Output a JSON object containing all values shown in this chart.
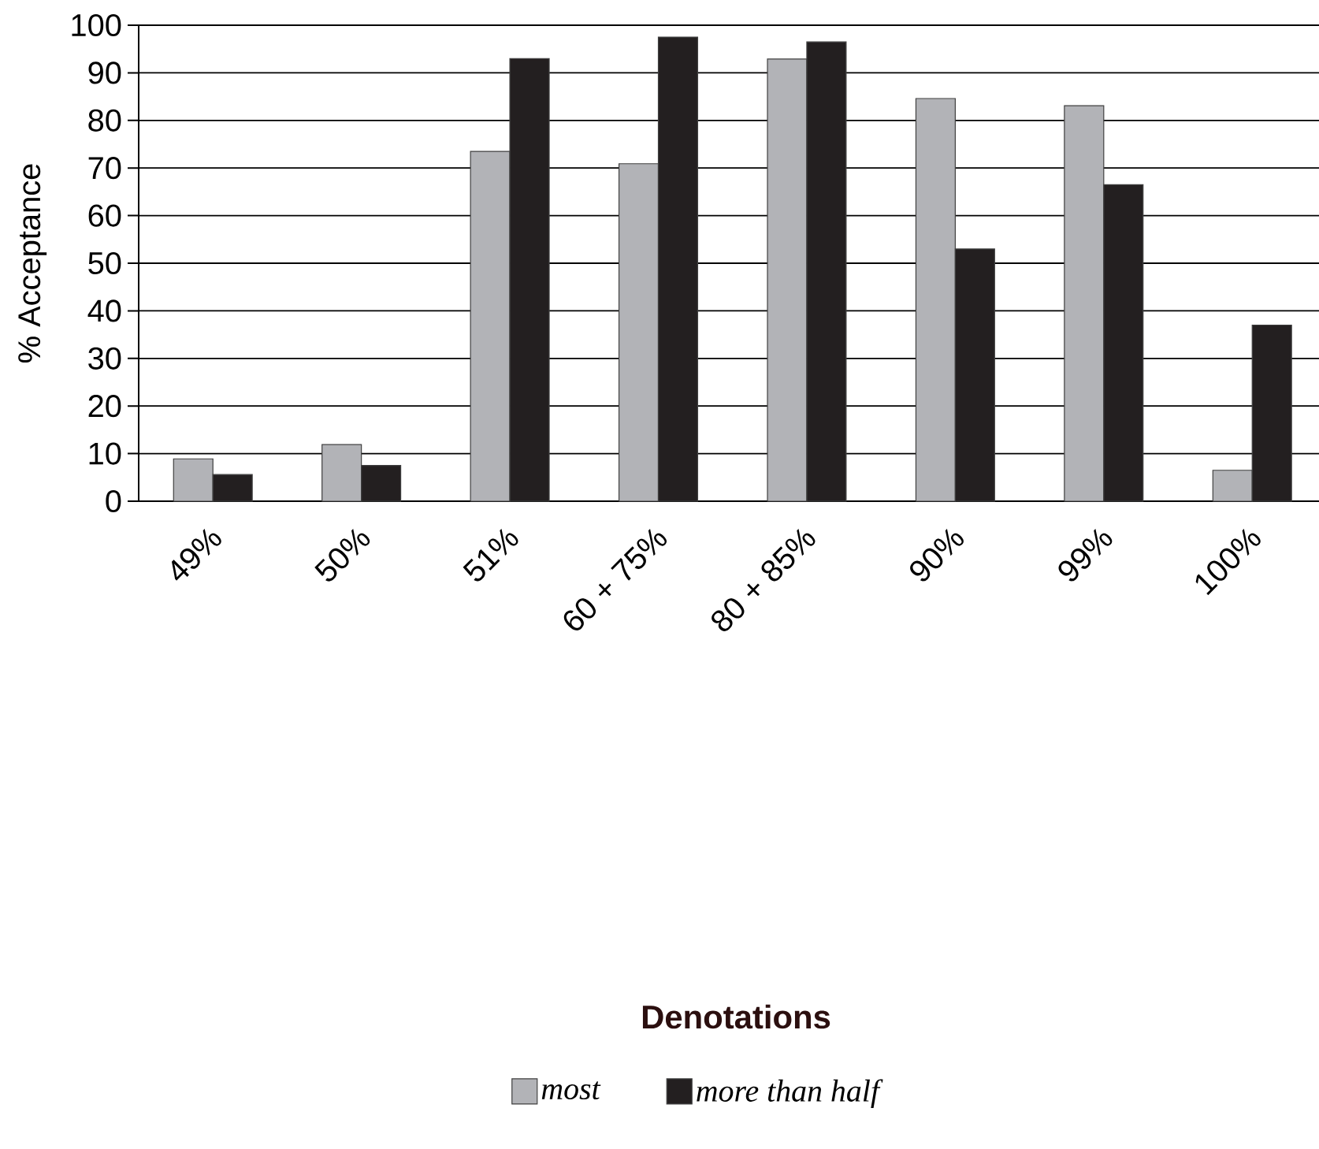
{
  "chart_data": {
    "type": "bar",
    "ylabel": "% Acceptance",
    "legend_title": "Denotations",
    "categories": [
      "49%",
      "50%",
      "51%",
      "60 + 75%",
      "80 + 85%",
      "90%",
      "99%",
      "100%"
    ],
    "series": [
      {
        "name": "most",
        "color": "#b2b3b7",
        "values": [
          8.9,
          11.9,
          73.5,
          70.9,
          92.9,
          84.6,
          83.1,
          6.5
        ]
      },
      {
        "name": "more than half",
        "color": "#231f20",
        "values": [
          5.6,
          7.5,
          93.0,
          97.5,
          96.5,
          53.0,
          66.5,
          37.0
        ]
      }
    ],
    "ylim": [
      0,
      100
    ],
    "yticks": [
      0,
      10,
      20,
      30,
      40,
      50,
      60,
      70,
      80,
      90,
      100
    ],
    "grid": "y",
    "legend": "bottom"
  }
}
